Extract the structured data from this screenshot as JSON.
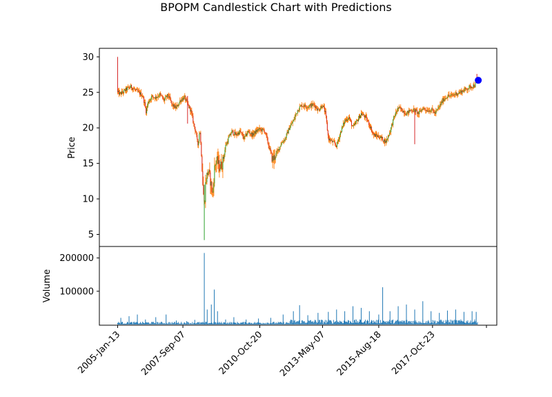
{
  "chart_data": {
    "type": "candlestick",
    "title": "BPOPM Candlestick Chart with Predictions",
    "price_panel": {
      "ylabel": "Price",
      "ylim": [
        3.3,
        31.2
      ],
      "yticks": [
        5,
        10,
        15,
        20,
        25,
        30
      ],
      "up_color": "#2ca02c",
      "down_color": "#d62728",
      "wick_color": "#ff7f0e",
      "close_path": [
        [
          "2005-01-13",
          25.0
        ],
        [
          "2005-02-15",
          24.8
        ],
        [
          "2005-04-01",
          25.0
        ],
        [
          "2005-06-01",
          25.5
        ],
        [
          "2005-08-01",
          25.8
        ],
        [
          "2005-10-01",
          25.3
        ],
        [
          "2005-12-01",
          24.9
        ],
        [
          "2006-01-15",
          24.6
        ],
        [
          "2006-02-15",
          23.5
        ],
        [
          "2006-03-10",
          22.3
        ],
        [
          "2006-04-10",
          23.6
        ],
        [
          "2006-06-01",
          24.4
        ],
        [
          "2006-08-01",
          24.3
        ],
        [
          "2006-10-01",
          24.7
        ],
        [
          "2006-12-01",
          23.9
        ],
        [
          "2007-02-01",
          24.6
        ],
        [
          "2007-04-01",
          23.2
        ],
        [
          "2007-06-01",
          22.8
        ],
        [
          "2007-08-01",
          23.9
        ],
        [
          "2007-10-01",
          24.3
        ],
        [
          "2007-11-15",
          23.3
        ],
        [
          "2008-01-01",
          22.5
        ],
        [
          "2008-02-15",
          20.5
        ],
        [
          "2008-03-15",
          19.5
        ],
        [
          "2008-04-15",
          17.5
        ],
        [
          "2008-05-15",
          19.8
        ],
        [
          "2008-06-15",
          15.0
        ],
        [
          "2008-07-01",
          11.5
        ],
        [
          "2008-07-20",
          9.0
        ],
        [
          "2008-08-10",
          12.5
        ],
        [
          "2008-09-15",
          14.0
        ],
        [
          "2008-10-20",
          12.5
        ],
        [
          "2008-11-20",
          10.5
        ],
        [
          "2008-12-20",
          14.5
        ],
        [
          "2009-01-20",
          15.5
        ],
        [
          "2009-03-01",
          14.5
        ],
        [
          "2009-04-15",
          15.0
        ],
        [
          "2009-06-01",
          17.5
        ],
        [
          "2009-07-15",
          18.5
        ],
        [
          "2009-09-01",
          19.5
        ],
        [
          "2009-11-01",
          19.0
        ],
        [
          "2010-01-01",
          19.5
        ],
        [
          "2010-03-01",
          18.5
        ],
        [
          "2010-05-01",
          19.5
        ],
        [
          "2010-07-01",
          19.0
        ],
        [
          "2010-10-01",
          19.8
        ],
        [
          "2011-01-01",
          19.6
        ],
        [
          "2011-03-01",
          17.5
        ],
        [
          "2011-05-01",
          15.5
        ],
        [
          "2011-07-01",
          16.5
        ],
        [
          "2011-09-01",
          17.8
        ],
        [
          "2011-11-01",
          18.5
        ],
        [
          "2012-01-01",
          20.0
        ],
        [
          "2012-03-01",
          21.0
        ],
        [
          "2012-05-01",
          22.5
        ],
        [
          "2012-07-01",
          23.2
        ],
        [
          "2012-10-01",
          23.0
        ],
        [
          "2013-01-01",
          23.3
        ],
        [
          "2013-03-01",
          22.5
        ],
        [
          "2013-05-07",
          23.2
        ],
        [
          "2013-06-20",
          22.0
        ],
        [
          "2013-08-01",
          18.5
        ],
        [
          "2013-10-01",
          18.0
        ],
        [
          "2013-12-01",
          17.5
        ],
        [
          "2014-02-01",
          19.5
        ],
        [
          "2014-04-01",
          21.0
        ],
        [
          "2014-06-01",
          21.5
        ],
        [
          "2014-08-01",
          20.0
        ],
        [
          "2014-10-01",
          21.0
        ],
        [
          "2014-12-01",
          22.0
        ],
        [
          "2015-02-01",
          21.5
        ],
        [
          "2015-04-01",
          20.5
        ],
        [
          "2015-06-01",
          19.0
        ],
        [
          "2015-08-18",
          18.8
        ],
        [
          "2015-10-01",
          18.5
        ],
        [
          "2015-12-01",
          18.0
        ],
        [
          "2016-02-01",
          19.5
        ],
        [
          "2016-04-01",
          21.5
        ],
        [
          "2016-06-01",
          22.8
        ],
        [
          "2016-08-01",
          22.5
        ],
        [
          "2016-10-01",
          22.0
        ],
        [
          "2016-12-01",
          22.5
        ],
        [
          "2017-02-01",
          22.5
        ],
        [
          "2017-04-01",
          22.0
        ],
        [
          "2017-06-01",
          22.8
        ],
        [
          "2017-08-01",
          22.5
        ],
        [
          "2017-10-23",
          22.5
        ],
        [
          "2017-12-01",
          22.0
        ],
        [
          "2018-02-01",
          23.0
        ],
        [
          "2018-04-01",
          24.0
        ],
        [
          "2018-06-01",
          24.5
        ],
        [
          "2018-08-01",
          24.5
        ],
        [
          "2018-10-01",
          24.8
        ],
        [
          "2018-12-01",
          25.0
        ],
        [
          "2019-02-01",
          25.3
        ],
        [
          "2019-04-01",
          25.6
        ],
        [
          "2019-06-01",
          25.9
        ],
        [
          "2019-07-15",
          26.0
        ],
        [
          "2019-08-20",
          26.6
        ]
      ],
      "spikes": [
        {
          "date": "2005-01-13",
          "low": 25.0,
          "high": 30.0
        },
        {
          "date": "2008-07-20",
          "low": 4.2,
          "high": 12.0
        },
        {
          "date": "2017-02-01",
          "low": 17.7,
          "high": 22.5
        },
        {
          "date": "2007-11-15",
          "low": 20.6,
          "high": 24.5
        }
      ],
      "prediction": {
        "date": "2019-09-01",
        "value": 26.7,
        "color": "#0000ff"
      }
    },
    "volume_panel": {
      "ylabel": "Volume",
      "yticks": [
        100000,
        200000
      ],
      "ytick_labels": [
        "100000",
        "200000"
      ],
      "ylim": [
        0,
        220000
      ],
      "bar_color": "#1f77b4",
      "bars": [
        [
          "2005-03-01",
          20000
        ],
        [
          "2005-07-01",
          25000
        ],
        [
          "2005-11-01",
          30000
        ],
        [
          "2006-03-01",
          15000
        ],
        [
          "2006-08-01",
          22000
        ],
        [
          "2007-01-01",
          30000
        ],
        [
          "2007-06-01",
          12000
        ],
        [
          "2007-11-01",
          10000
        ],
        [
          "2008-03-01",
          14000
        ],
        [
          "2008-07-20",
          215000
        ],
        [
          "2008-09-01",
          45000
        ],
        [
          "2008-11-01",
          60000
        ],
        [
          "2008-12-15",
          105000
        ],
        [
          "2009-02-01",
          40000
        ],
        [
          "2009-06-01",
          15000
        ],
        [
          "2009-10-01",
          22000
        ],
        [
          "2010-04-01",
          15000
        ],
        [
          "2010-10-01",
          18000
        ],
        [
          "2011-04-01",
          20000
        ],
        [
          "2011-10-01",
          30000
        ],
        [
          "2012-03-01",
          40000
        ],
        [
          "2012-06-01",
          58000
        ],
        [
          "2012-10-01",
          28000
        ],
        [
          "2013-03-01",
          35000
        ],
        [
          "2013-08-01",
          38000
        ],
        [
          "2013-12-01",
          45000
        ],
        [
          "2014-04-01",
          40000
        ],
        [
          "2014-08-01",
          55000
        ],
        [
          "2014-12-01",
          50000
        ],
        [
          "2015-04-01",
          40000
        ],
        [
          "2015-08-18",
          30000
        ],
        [
          "2015-10-15",
          112000
        ],
        [
          "2016-02-01",
          40000
        ],
        [
          "2016-06-01",
          55000
        ],
        [
          "2016-10-01",
          60000
        ],
        [
          "2017-02-01",
          45000
        ],
        [
          "2017-06-01",
          70000
        ],
        [
          "2017-10-01",
          40000
        ],
        [
          "2018-02-01",
          35000
        ],
        [
          "2018-06-01",
          42000
        ],
        [
          "2018-10-01",
          45000
        ],
        [
          "2019-02-01",
          38000
        ],
        [
          "2019-06-01",
          40000
        ],
        [
          "2019-08-01",
          38000
        ]
      ]
    },
    "x_axis": {
      "tick_dates": [
        "2005-01-13",
        "2007-09-07",
        "2010-10-20",
        "2013-05-07",
        "2015-08-18",
        "2017-10-23",
        "2019-12-31"
      ],
      "tick_labels": [
        "2005-Jan-13",
        "2007-Sep-07",
        "2010-Oct-20",
        "2013-May-07",
        "2015-Aug-18",
        "2017-Oct-23",
        ""
      ],
      "label_rotation_deg": 45
    }
  }
}
